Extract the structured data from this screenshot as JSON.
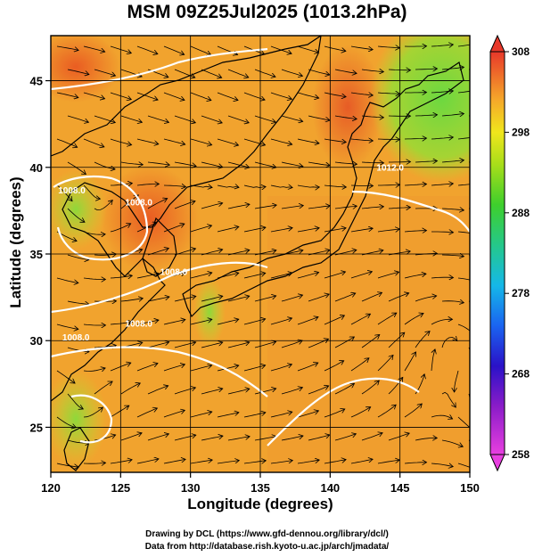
{
  "title": "MSM 09Z25Jul2025 (1013.2hPa)",
  "xlabel": "Longitude (degrees)",
  "ylabel": "Latitude  (degrees)",
  "credits": [
    "Drawing by DCL (https://www.gfd-dennou.org/library/dcl/)",
    "Data from http://database.rish.kyoto-u.ac.jp/arch/jmadata/"
  ],
  "map": {
    "lon_range": [
      120,
      150
    ],
    "lat_range": [
      22.4,
      47.6
    ],
    "lon_ticks": [
      {
        "v": 120,
        "t": "120"
      },
      {
        "v": 125,
        "t": "125"
      },
      {
        "v": 130,
        "t": "130"
      },
      {
        "v": 135,
        "t": "135"
      },
      {
        "v": 140,
        "t": "140"
      },
      {
        "v": 145,
        "t": "145"
      },
      {
        "v": 150,
        "t": "150"
      }
    ],
    "lat_ticks": [
      {
        "v": 25,
        "t": "25"
      },
      {
        "v": 30,
        "t": "30"
      },
      {
        "v": 35,
        "t": "35"
      },
      {
        "v": 40,
        "t": "40"
      },
      {
        "v": 45,
        "t": "45"
      }
    ],
    "grid": true,
    "colorbar": {
      "min": 258,
      "max": 308,
      "ticks": [
        {
          "v": 258,
          "t": "258"
        },
        {
          "v": 268,
          "t": "268"
        },
        {
          "v": 278,
          "t": "278"
        },
        {
          "v": 288,
          "t": "288"
        },
        {
          "v": 298,
          "t": "298"
        },
        {
          "v": 308,
          "t": "308"
        }
      ]
    },
    "contour_labels": [
      {
        "lon": 121.5,
        "lat": 38.5,
        "t": "1008.0"
      },
      {
        "lon": 126.3,
        "lat": 37.8,
        "t": "1008.0"
      },
      {
        "lon": 128.8,
        "lat": 33.8,
        "t": "1008.0"
      },
      {
        "lon": 126.3,
        "lat": 30.8,
        "t": "1008.0"
      },
      {
        "lon": 121.8,
        "lat": 30.0,
        "t": "1008.0"
      },
      {
        "lon": 144.3,
        "lat": 39.8,
        "t": "1012.0"
      }
    ]
  }
}
